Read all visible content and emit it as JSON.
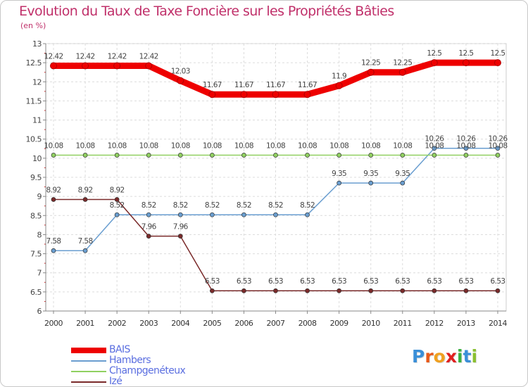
{
  "title": "Evolution du Taux de Taxe Foncière sur les Propriétés Bâties",
  "subtitle": "(en %)",
  "logo": {
    "text": "Proxiti",
    "letters": [
      "P",
      "r",
      "o",
      "x",
      "i",
      "t",
      "i"
    ],
    "colors": [
      "#3a8fd8",
      "#e85a1a",
      "#f0a020",
      "#e02020",
      "#3ab040",
      "#3a8fd8",
      "#8ac030"
    ]
  },
  "chart_data": {
    "type": "line",
    "x": [
      "2000",
      "2001",
      "2002",
      "2003",
      "2004",
      "2005",
      "2006",
      "2007",
      "2008",
      "2009",
      "2010",
      "2011",
      "2012",
      "2013",
      "2014"
    ],
    "ylim": [
      6,
      13
    ],
    "yticks": [
      "6",
      "6.5",
      "7",
      "7.5",
      "8",
      "8.5",
      "9",
      "9.5",
      "10",
      "10.5",
      "11",
      "11.5",
      "12",
      "12.5",
      "13"
    ],
    "grid": true,
    "legend_position": "bottom-left",
    "series": [
      {
        "name": "BAIS",
        "color": "#ee0000",
        "width": 9,
        "values": [
          12.42,
          12.42,
          12.42,
          12.42,
          12.03,
          11.67,
          11.67,
          11.67,
          11.67,
          11.9,
          12.25,
          12.25,
          12.5,
          12.5,
          12.5
        ],
        "labels": [
          "12.42",
          "12.42",
          "12.42",
          "12.42",
          "12.03",
          "11.67",
          "11.67",
          "11.67",
          "11.67",
          "11.9",
          "12.25",
          "12.25",
          "12.5",
          "12.5",
          "12.5"
        ]
      },
      {
        "name": "Hambers",
        "color": "#6a9ed0",
        "width": 1.5,
        "values": [
          7.58,
          7.58,
          8.52,
          8.52,
          8.52,
          8.52,
          8.52,
          8.52,
          8.52,
          9.35,
          9.35,
          9.35,
          10.26,
          10.26,
          10.26
        ],
        "labels": [
          "7.58",
          "7.58",
          "8.52",
          "8.52",
          "8.52",
          "8.52",
          "8.52",
          "8.52",
          "8.52",
          "9.35",
          "9.35",
          "9.35",
          "10.26",
          "10.26",
          "10.26"
        ]
      },
      {
        "name": "Champgenéteux",
        "color": "#90d060",
        "width": 1.5,
        "values": [
          10.08,
          10.08,
          10.08,
          10.08,
          10.08,
          10.08,
          10.08,
          10.08,
          10.08,
          10.08,
          10.08,
          10.08,
          10.08,
          10.08,
          10.08
        ],
        "labels": [
          "10.08",
          "10.08",
          "10.08",
          "10.08",
          "10.08",
          "10.08",
          "10.08",
          "10.08",
          "10.08",
          "10.08",
          "10.08",
          "10.08",
          "10.08",
          "10.08",
          "10.08"
        ]
      },
      {
        "name": "Izé",
        "color": "#7a2a2a",
        "width": 1.5,
        "values": [
          8.92,
          8.92,
          8.92,
          7.96,
          7.96,
          6.53,
          6.53,
          6.53,
          6.53,
          6.53,
          6.53,
          6.53,
          6.53,
          6.53,
          6.53
        ],
        "labels": [
          "8.92",
          "8.92",
          "8.92",
          "7.96",
          "7.96",
          "6.53",
          "6.53",
          "6.53",
          "6.53",
          "6.53",
          "6.53",
          "6.53",
          "6.53",
          "6.53",
          "6.53"
        ]
      }
    ]
  }
}
